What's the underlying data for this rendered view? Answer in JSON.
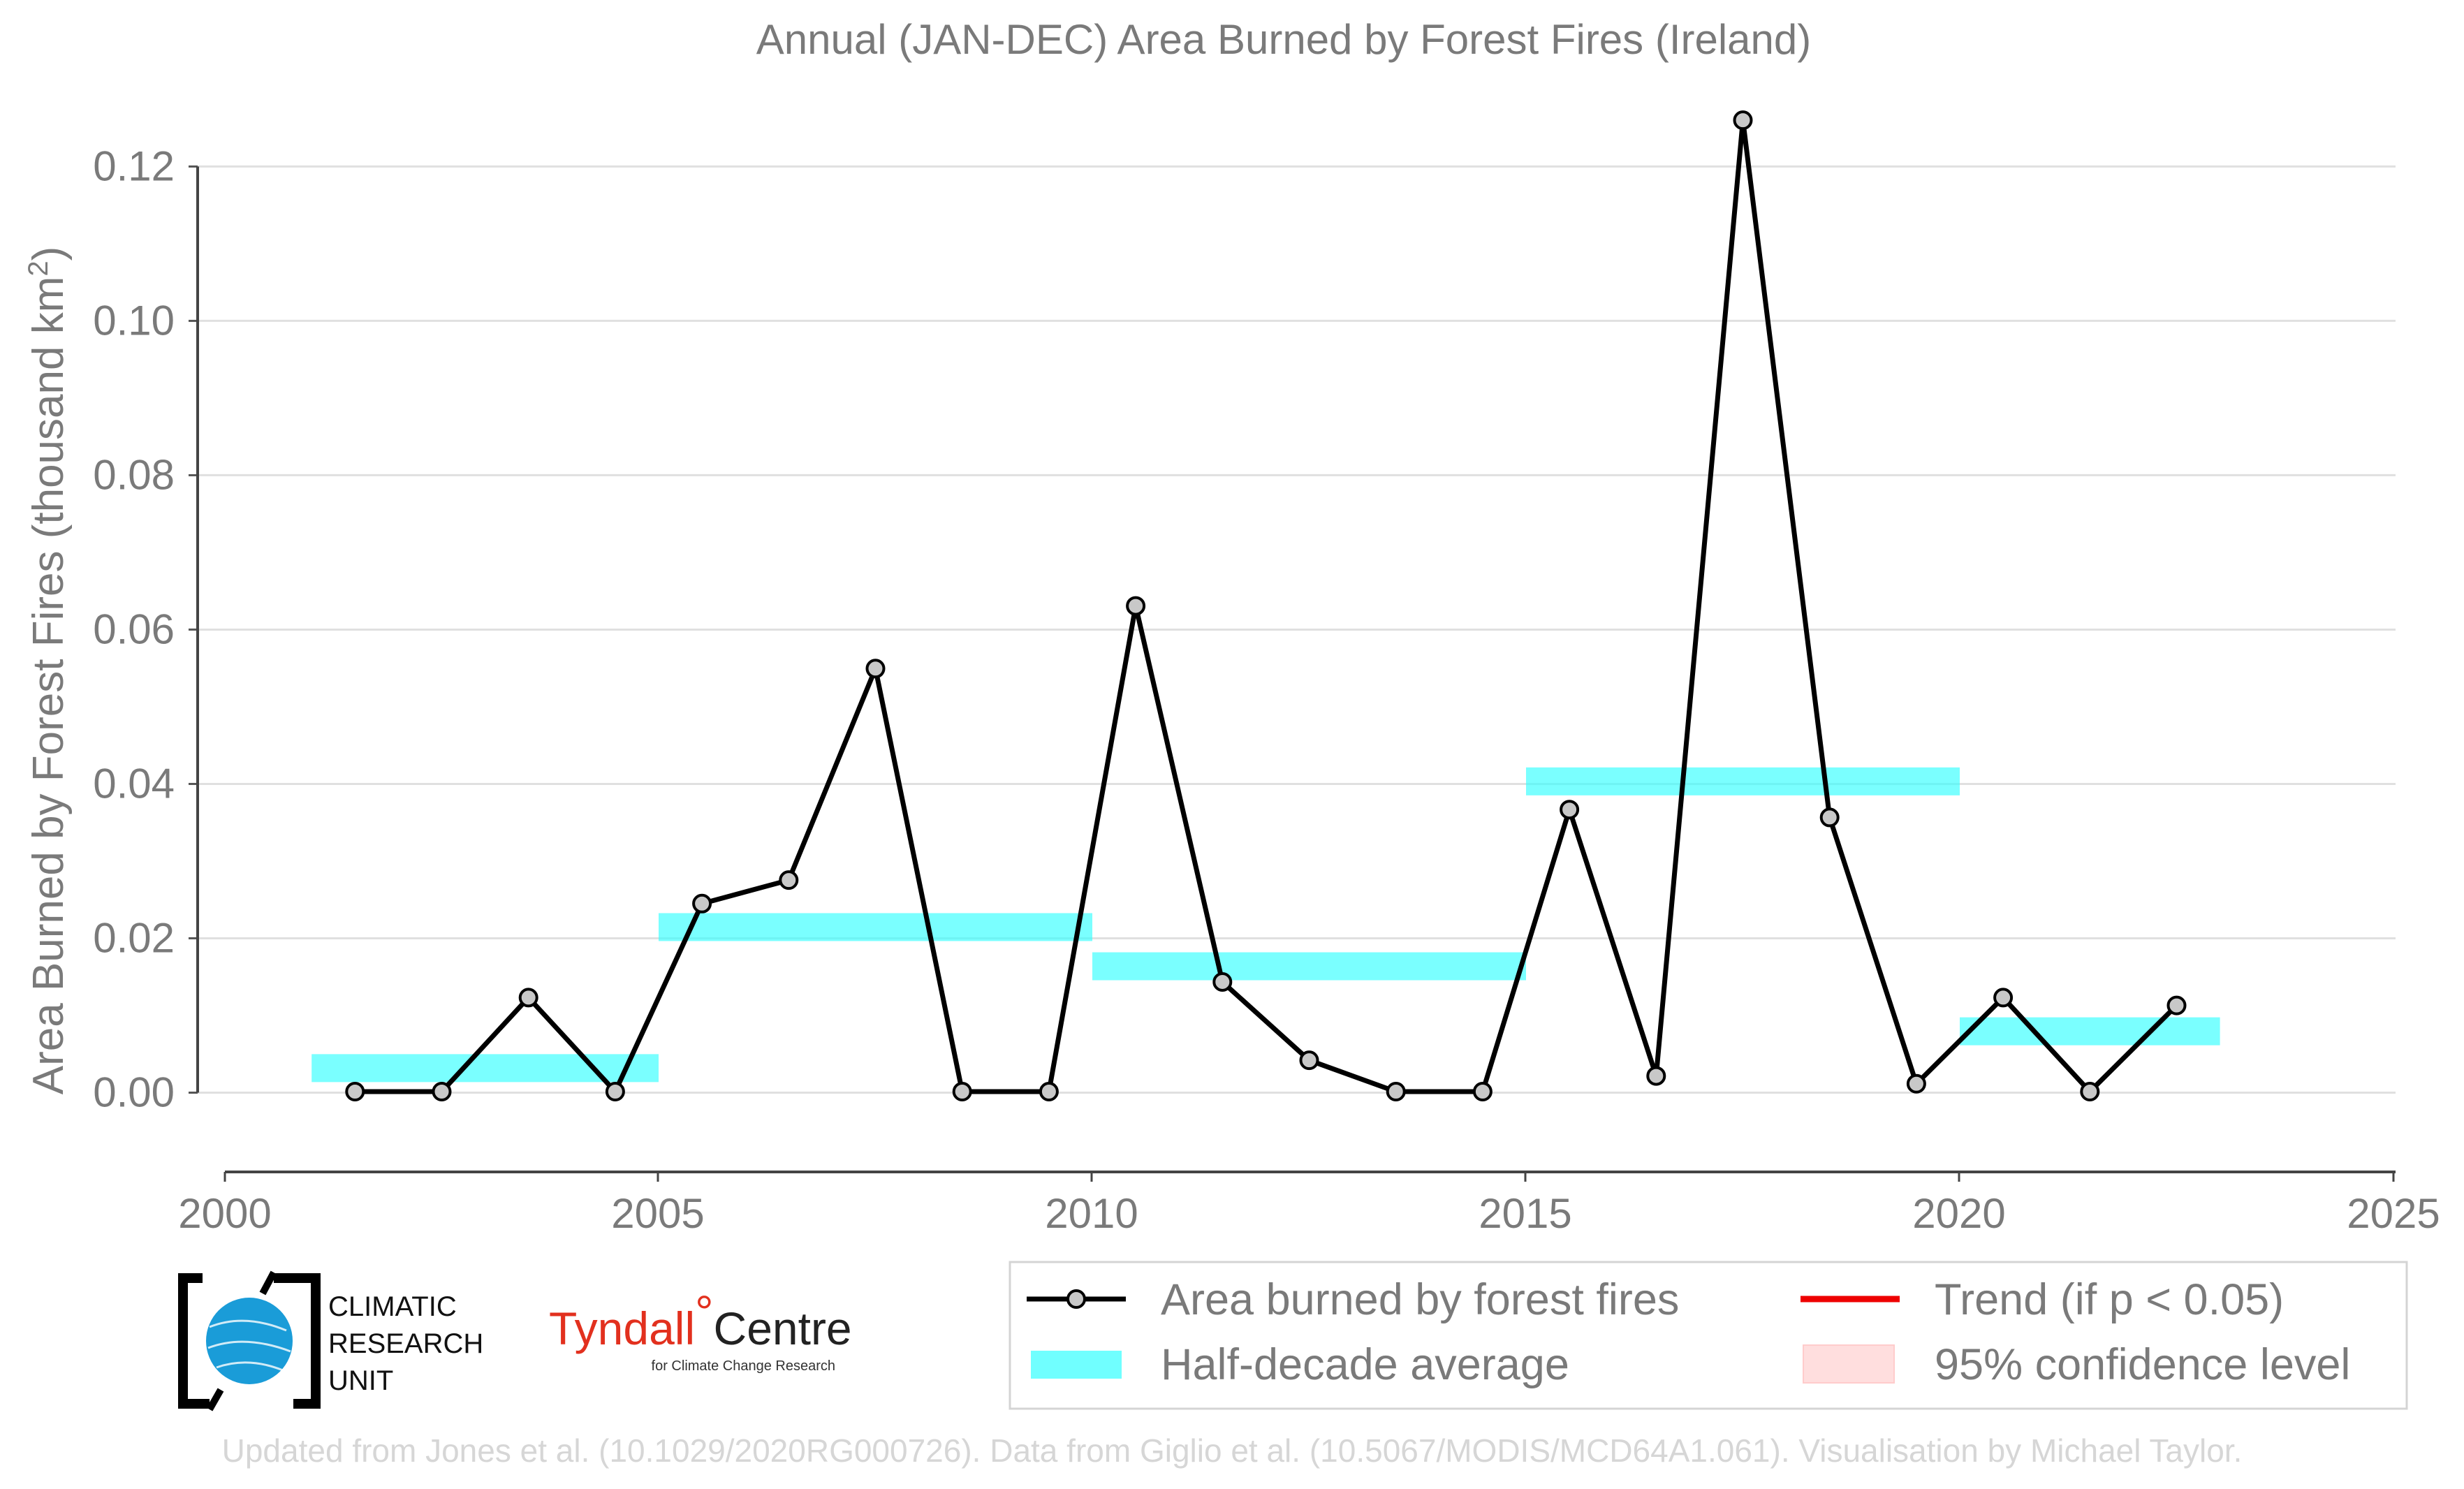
{
  "chart_data": {
    "type": "line",
    "title": "Annual (JAN-DEC) Area Burned by Forest Fires (Ireland)",
    "ylabel_main": "Area Burned by Forest Fires (thousand km",
    "ylabel_sup": "2",
    "ylabel_close": ")",
    "xlabel": "",
    "xlim": [
      2000,
      2025
    ],
    "ylim": [
      -0.01,
      0.128
    ],
    "xticks": [
      "2000",
      "2005",
      "2010",
      "2015",
      "2020",
      "2025"
    ],
    "yticks": [
      "0.00",
      "0.02",
      "0.04",
      "0.06",
      "0.08",
      "0.10",
      "0.12"
    ],
    "grid": "horizontal",
    "series": [
      {
        "name": "Area burned by forest fires",
        "color": "#000000",
        "marker_fill": "#c8c8c8",
        "x": [
          2001.5,
          2002.5,
          2003.5,
          2004.5,
          2005.5,
          2006.5,
          2007.5,
          2008.5,
          2009.5,
          2010.5,
          2011.5,
          2012.5,
          2013.5,
          2014.5,
          2015.5,
          2016.5,
          2017.5,
          2018.5,
          2019.5,
          2020.5,
          2021.5,
          2022.5
        ],
        "y": [
          0.0,
          0.0,
          0.012,
          0.0,
          0.024,
          0.027,
          0.054,
          0.0,
          0.0,
          0.062,
          0.014,
          0.004,
          0.0,
          0.0,
          0.036,
          0.002,
          0.124,
          0.035,
          0.001,
          0.012,
          0.0,
          0.011
        ]
      }
    ],
    "half_decade_average": {
      "name": "Half-decade average",
      "color": "#33ffff",
      "segments": [
        {
          "x0": 2001,
          "x1": 2005,
          "y": 0.003
        },
        {
          "x0": 2005,
          "x1": 2010,
          "y": 0.021
        },
        {
          "x0": 2010,
          "x1": 2015,
          "y": 0.016
        },
        {
          "x0": 2015,
          "x1": 2020,
          "y": 0.0396
        },
        {
          "x0": 2020,
          "x1": 2023,
          "y": 0.0077
        }
      ]
    },
    "legend": {
      "position": "bottom-right",
      "items": [
        {
          "label": "Area burned by forest fires",
          "kind": "line-marker",
          "color": "#000000"
        },
        {
          "label": "Trend (if p < 0.05)",
          "kind": "line",
          "color": "#ee0000"
        },
        {
          "label": "Half-decade average",
          "kind": "band",
          "color": "#33ffff"
        },
        {
          "label": "95% confidence level",
          "kind": "patch",
          "color": "#ffdede"
        }
      ]
    }
  },
  "logos": {
    "cru_lines": [
      "CLIMATIC",
      "RESEARCH",
      "UNIT"
    ],
    "tyndall_main": "Tyndall",
    "tyndall_degree": "°",
    "tyndall_centre": "Centre",
    "tyndall_sub": "for Climate Change Research"
  },
  "footer": "Updated from Jones et al. (10.1029/2020RG000726). Data from Giglio et al. (10.5067/MODIS/MCD64A1.061). Visualisation by Michael Taylor."
}
